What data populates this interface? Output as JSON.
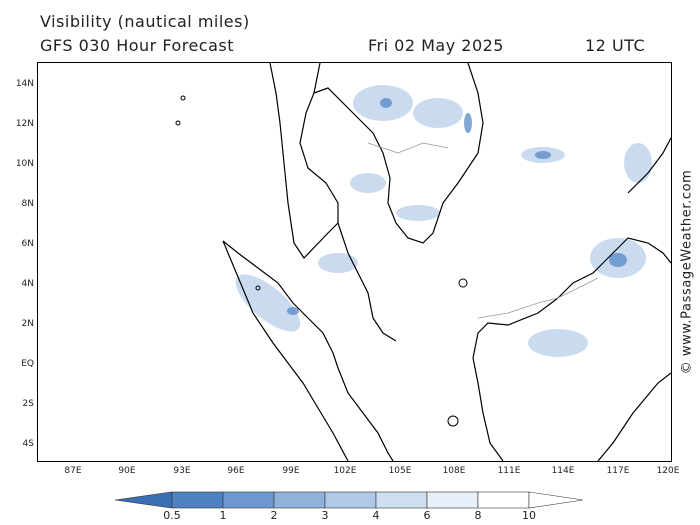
{
  "header": {
    "title": "Visibility (nautical miles)",
    "subtitle": "GFS 030 Hour Forecast",
    "date": "Fri 02 May 2025",
    "time": "12 UTC"
  },
  "credit": "© www.PassageWeather.com",
  "axes": {
    "lat_labels": [
      "14N",
      "12N",
      "10N",
      "8N",
      "6N",
      "4N",
      "2N",
      "EQ",
      "2S",
      "4S"
    ],
    "lon_labels": [
      "87E",
      "90E",
      "93E",
      "96E",
      "99E",
      "102E",
      "105E",
      "108E",
      "111E",
      "114E",
      "117E",
      "120E"
    ]
  },
  "legend": {
    "labels": [
      "0.5",
      "1",
      "2",
      "3",
      "4",
      "6",
      "8",
      "10"
    ],
    "colors": [
      "#3b6fb3",
      "#4f82c2",
      "#6d99d0",
      "#8fb2dc",
      "#b0c9e8",
      "#cfdff1",
      "#e8f0f9"
    ]
  }
}
